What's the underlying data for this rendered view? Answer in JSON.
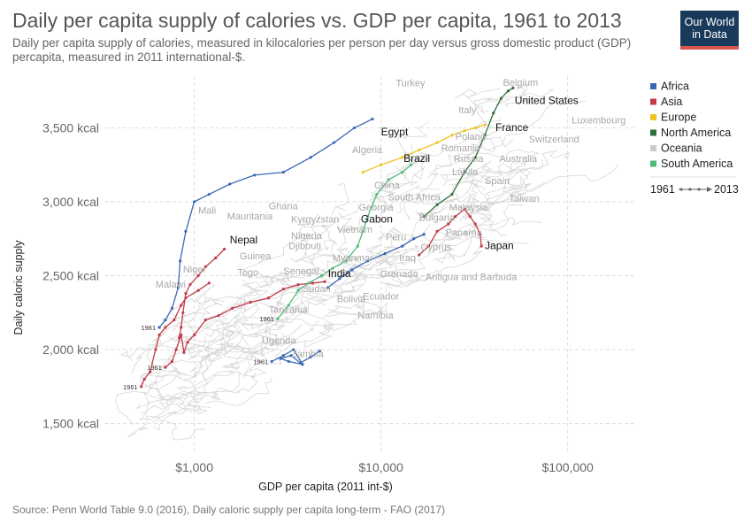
{
  "header": {
    "title": "Daily per capita supply of calories vs. GDP per capita, 1961 to 2013",
    "subtitle": "Daily per capita supply of calories, measured in kilocalories per person per day versus gross domestic product (GDP) percapita, measured in 2011 international-$.",
    "logo_line1": "Our World",
    "logo_line2": "in Data"
  },
  "footer": {
    "source": "Source: Penn World Table 9.0 (2016), Daily caloric supply per capita long-term - FAO (2017)"
  },
  "chart_data": {
    "type": "scatter",
    "xlabel": "GDP per capita (2011 int-$)",
    "ylabel": "Daily caloric supply",
    "x_scale": "log",
    "xlim": [
      330,
      230000
    ],
    "ylim": [
      1300,
      3850
    ],
    "x_ticks": [
      {
        "value": 1000,
        "label": "$1,000"
      },
      {
        "value": 10000,
        "label": "$10,000"
      },
      {
        "value": 100000,
        "label": "$100,000"
      }
    ],
    "y_ticks": [
      {
        "value": 1500,
        "label": "1,500 kcal"
      },
      {
        "value": 2000,
        "label": "2,000 kcal"
      },
      {
        "value": 2500,
        "label": "2,500 kcal"
      },
      {
        "value": 3000,
        "label": "3,000 kcal"
      },
      {
        "value": 3500,
        "label": "3,500 kcal"
      }
    ],
    "grid": true,
    "legend_position": "right",
    "legend": [
      {
        "name": "Africa",
        "color": "#3b68b4"
      },
      {
        "name": "Asia",
        "color": "#c23b49"
      },
      {
        "name": "Europe",
        "color": "#f0c325"
      },
      {
        "name": "North America",
        "color": "#2e6f3b"
      },
      {
        "name": "Oceania",
        "color": "#cccccc"
      },
      {
        "name": "South America",
        "color": "#4fbb78"
      }
    ],
    "timeline_legend": {
      "start": "1961",
      "end": "2013"
    },
    "year_marker": "1961",
    "series": [
      {
        "name": "Egypt",
        "region": "Africa",
        "color": "#3b68b4",
        "start_label": true,
        "points": [
          [
            650,
            2150
          ],
          [
            700,
            2200
          ],
          [
            760,
            2280
          ],
          [
            820,
            2420
          ],
          [
            840,
            2600
          ],
          [
            900,
            2800
          ],
          [
            1000,
            3000
          ],
          [
            1200,
            3050
          ],
          [
            1550,
            3120
          ],
          [
            2100,
            3180
          ],
          [
            3000,
            3200
          ],
          [
            4200,
            3300
          ],
          [
            5600,
            3400
          ],
          [
            7200,
            3500
          ],
          [
            9000,
            3560
          ]
        ]
      },
      {
        "name": "Zambia",
        "region": "Africa",
        "color": "#3b68b4",
        "start_label": true,
        "points": [
          [
            2600,
            1920
          ],
          [
            3000,
            1960
          ],
          [
            3400,
            2000
          ],
          [
            3800,
            1900
          ],
          [
            3200,
            1920
          ],
          [
            2900,
            1940
          ],
          [
            3300,
            1960
          ],
          [
            3700,
            1910
          ],
          [
            4200,
            1950
          ],
          [
            4700,
            1990
          ]
        ]
      },
      {
        "name": "Nepal",
        "region": "Asia",
        "color": "#c23b49",
        "points": [
          [
            830,
            2080
          ],
          [
            850,
            2150
          ],
          [
            870,
            2250
          ],
          [
            900,
            2380
          ],
          [
            950,
            2440
          ],
          [
            1050,
            2500
          ],
          [
            1150,
            2560
          ],
          [
            1300,
            2620
          ],
          [
            1450,
            2680
          ]
        ]
      },
      {
        "name": "India",
        "region": "Asia",
        "color": "#c23b49",
        "start_label": true,
        "points": [
          [
            700,
            1880
          ],
          [
            760,
            1920
          ],
          [
            800,
            2000
          ],
          [
            850,
            2100
          ],
          [
            880,
            1980
          ],
          [
            920,
            2050
          ],
          [
            1000,
            2100
          ],
          [
            1150,
            2200
          ],
          [
            1350,
            2230
          ],
          [
            1600,
            2280
          ],
          [
            2000,
            2320
          ],
          [
            2500,
            2350
          ],
          [
            3000,
            2410
          ],
          [
            3600,
            2440
          ],
          [
            4300,
            2450
          ],
          [
            5000,
            2460
          ]
        ]
      },
      {
        "name": "China",
        "region": "Asia",
        "color": "#c23b49",
        "start_label": true,
        "points": [
          [
            520,
            1750
          ],
          [
            540,
            1800
          ],
          [
            580,
            1850
          ],
          [
            620,
            2000
          ],
          [
            650,
            2100
          ],
          [
            700,
            2150
          ],
          [
            780,
            2200
          ],
          [
            850,
            2300
          ],
          [
            900,
            2350
          ],
          [
            1050,
            2400
          ],
          [
            1200,
            2450
          ]
        ]
      },
      {
        "name": "Japan",
        "region": "Asia",
        "color": "#c23b49",
        "points": [
          [
            16000,
            2640
          ],
          [
            18000,
            2700
          ],
          [
            20000,
            2800
          ],
          [
            23000,
            2850
          ],
          [
            25000,
            2900
          ],
          [
            28000,
            2950
          ],
          [
            30000,
            2900
          ],
          [
            32000,
            2850
          ],
          [
            34000,
            2780
          ],
          [
            34500,
            2700
          ]
        ]
      },
      {
        "name": "Brazil",
        "region": "South America",
        "color": "#4fbb78",
        "start_label": true,
        "points": [
          [
            2800,
            2210
          ],
          [
            3200,
            2300
          ],
          [
            3600,
            2400
          ],
          [
            4100,
            2450
          ],
          [
            4800,
            2500
          ],
          [
            5500,
            2550
          ],
          [
            6500,
            2600
          ],
          [
            7500,
            2700
          ],
          [
            8000,
            2800
          ],
          [
            8500,
            2900
          ],
          [
            9500,
            3050
          ],
          [
            11000,
            3150
          ],
          [
            13000,
            3200
          ],
          [
            14500,
            3250
          ]
        ]
      },
      {
        "name": "Gabon",
        "region": "Africa",
        "color": "#3b68b4",
        "points": [
          [
            5200,
            2420
          ],
          [
            6000,
            2480
          ],
          [
            7000,
            2540
          ],
          [
            8500,
            2600
          ],
          [
            10500,
            2650
          ],
          [
            13000,
            2700
          ],
          [
            15000,
            2750
          ],
          [
            17000,
            2780
          ]
        ]
      },
      {
        "name": "France",
        "region": "Europe",
        "color": "#f0c325",
        "points": [
          [
            8000,
            3200
          ],
          [
            10000,
            3250
          ],
          [
            13000,
            3300
          ],
          [
            16000,
            3350
          ],
          [
            20000,
            3400
          ],
          [
            24000,
            3450
          ],
          [
            28000,
            3480
          ],
          [
            32000,
            3500
          ],
          [
            36000,
            3520
          ]
        ]
      },
      {
        "name": "United States",
        "region": "North America",
        "color": "#2e6f3b",
        "points": [
          [
            17000,
            2900
          ],
          [
            20000,
            2980
          ],
          [
            24000,
            3050
          ],
          [
            28000,
            3200
          ],
          [
            32000,
            3300
          ],
          [
            36000,
            3450
          ],
          [
            40000,
            3600
          ],
          [
            44000,
            3700
          ],
          [
            48000,
            3750
          ],
          [
            51000,
            3770
          ]
        ]
      }
    ],
    "point_labels": [
      {
        "text": "Turkey",
        "x": 12000,
        "y": 3780,
        "highlight": false
      },
      {
        "text": "Belgium",
        "x": 45000,
        "y": 3785,
        "highlight": false
      },
      {
        "text": "Italy",
        "x": 26000,
        "y": 3600,
        "highlight": false
      },
      {
        "text": "United States",
        "x": 52000,
        "y": 3660,
        "highlight": true
      },
      {
        "text": "Luxembourg",
        "x": 105000,
        "y": 3530,
        "highlight": false
      },
      {
        "text": "Egypt",
        "x": 10000,
        "y": 3450,
        "highlight": true
      },
      {
        "text": "France",
        "x": 41000,
        "y": 3480,
        "highlight": true
      },
      {
        "text": "Poland",
        "x": 25000,
        "y": 3420,
        "highlight": false
      },
      {
        "text": "Switzerland",
        "x": 62000,
        "y": 3400,
        "highlight": false
      },
      {
        "text": "Algeria",
        "x": 7000,
        "y": 3330,
        "highlight": false
      },
      {
        "text": "Romania",
        "x": 21000,
        "y": 3340,
        "highlight": false
      },
      {
        "text": "Russia",
        "x": 24500,
        "y": 3270,
        "highlight": false
      },
      {
        "text": "Australia",
        "x": 43000,
        "y": 3270,
        "highlight": false
      },
      {
        "text": "Brazil",
        "x": 13200,
        "y": 3270,
        "highlight": true
      },
      {
        "text": "Latvia",
        "x": 24000,
        "y": 3180,
        "highlight": false
      },
      {
        "text": "China",
        "x": 9200,
        "y": 3090,
        "highlight": false
      },
      {
        "text": "Spain",
        "x": 36000,
        "y": 3120,
        "highlight": false
      },
      {
        "text": "South Africa",
        "x": 10900,
        "y": 3010,
        "highlight": false
      },
      {
        "text": "Taiwan",
        "x": 48500,
        "y": 3000,
        "highlight": false
      },
      {
        "text": "Mali",
        "x": 1050,
        "y": 2920,
        "highlight": false
      },
      {
        "text": "Ghana",
        "x": 2500,
        "y": 2950,
        "highlight": false
      },
      {
        "text": "Georgia",
        "x": 7600,
        "y": 2940,
        "highlight": false
      },
      {
        "text": "Malaysia",
        "x": 23200,
        "y": 2940,
        "highlight": false
      },
      {
        "text": "Mauritania",
        "x": 1500,
        "y": 2880,
        "highlight": false
      },
      {
        "text": "Kyrgyzstan",
        "x": 3300,
        "y": 2860,
        "highlight": false
      },
      {
        "text": "Gabon",
        "x": 7800,
        "y": 2860,
        "highlight": true
      },
      {
        "text": "Bulgaria",
        "x": 16000,
        "y": 2870,
        "highlight": false
      },
      {
        "text": "Vietnam",
        "x": 5800,
        "y": 2790,
        "highlight": false
      },
      {
        "text": "Nigeria",
        "x": 3300,
        "y": 2750,
        "highlight": false
      },
      {
        "text": "Nepal",
        "x": 1550,
        "y": 2720,
        "highlight": true
      },
      {
        "text": "Peru",
        "x": 10600,
        "y": 2740,
        "highlight": false
      },
      {
        "text": "Panama",
        "x": 22200,
        "y": 2770,
        "highlight": false
      },
      {
        "text": "Djibouti",
        "x": 3200,
        "y": 2680,
        "highlight": false
      },
      {
        "text": "Japan",
        "x": 36000,
        "y": 2680,
        "highlight": true
      },
      {
        "text": "Cyprus",
        "x": 16300,
        "y": 2670,
        "highlight": false
      },
      {
        "text": "Guinea",
        "x": 1750,
        "y": 2610,
        "highlight": false
      },
      {
        "text": "Iraq",
        "x": 12500,
        "y": 2600,
        "highlight": false
      },
      {
        "text": "Myanmar",
        "x": 5500,
        "y": 2600,
        "highlight": false
      },
      {
        "text": "Niger",
        "x": 870,
        "y": 2520,
        "highlight": false
      },
      {
        "text": "Togo",
        "x": 1700,
        "y": 2500,
        "highlight": false
      },
      {
        "text": "Senegal",
        "x": 3000,
        "y": 2510,
        "highlight": false
      },
      {
        "text": "India",
        "x": 5200,
        "y": 2490,
        "highlight": true
      },
      {
        "text": "Grenada",
        "x": 9900,
        "y": 2490,
        "highlight": false
      },
      {
        "text": "Antigua and Barbuda",
        "x": 17300,
        "y": 2470,
        "highlight": false
      },
      {
        "text": "Malawi",
        "x": 620,
        "y": 2420,
        "highlight": false
      },
      {
        "text": "Sudan",
        "x": 3800,
        "y": 2390,
        "highlight": false
      },
      {
        "text": "Ecuador",
        "x": 8000,
        "y": 2340,
        "highlight": false
      },
      {
        "text": "Bolivia",
        "x": 5800,
        "y": 2320,
        "highlight": false
      },
      {
        "text": "Tanzania",
        "x": 2500,
        "y": 2250,
        "highlight": false
      },
      {
        "text": "Namibia",
        "x": 7500,
        "y": 2210,
        "highlight": false
      },
      {
        "text": "Uganda",
        "x": 2300,
        "y": 2040,
        "highlight": false
      },
      {
        "text": "Zambia",
        "x": 3300,
        "y": 1950,
        "highlight": false
      }
    ]
  }
}
